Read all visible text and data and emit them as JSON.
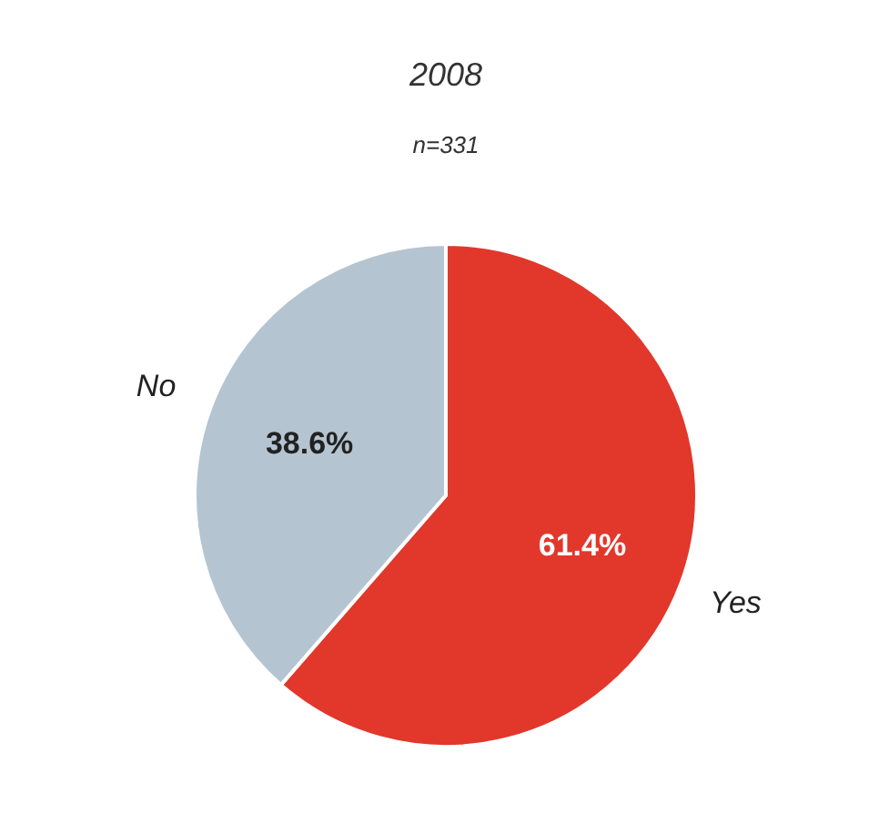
{
  "chart_data": {
    "type": "pie",
    "title": "2008",
    "subtitle": "n=331",
    "categories": [
      "Yes",
      "No"
    ],
    "values": [
      61.4,
      38.6
    ],
    "colors": [
      "#e2372b",
      "#b5c4d1"
    ],
    "value_labels": [
      "61.4%",
      "38.6%"
    ]
  }
}
